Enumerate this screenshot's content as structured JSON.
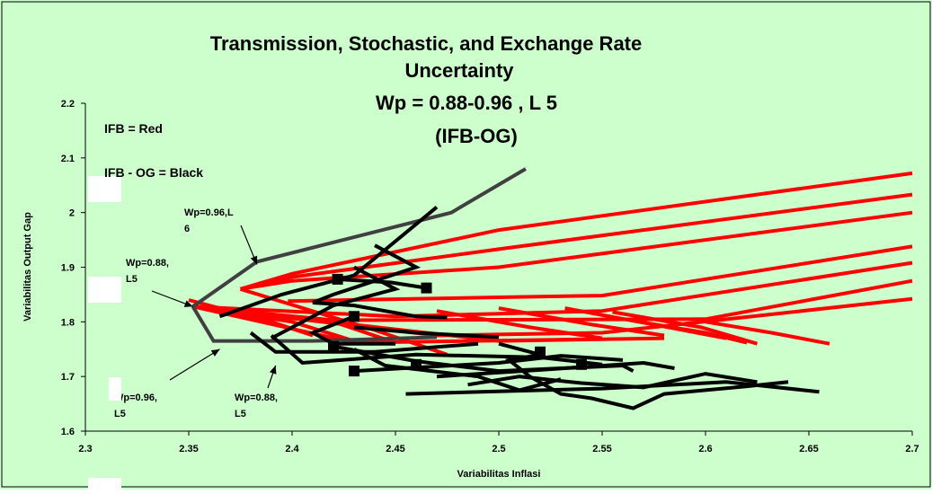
{
  "chart_data": {
    "type": "line",
    "title_lines": [
      "Transmission, Stochastic, and Exchange Rate",
      "Uncertainty",
      "Wp = 0.88-0.96 , L 5",
      "(IFB-OG)"
    ],
    "xlabel": "Variabilitas Inflasi",
    "ylabel": "Variabilitas Output Gap",
    "xlim": [
      2.3,
      2.7
    ],
    "ylim": [
      1.6,
      2.2
    ],
    "x_ticks": [
      "2.3",
      "2.35",
      "2.4",
      "2.45",
      "2.5",
      "2.55",
      "2.6",
      "2.65",
      "2.7"
    ],
    "y_ticks": [
      "1.6",
      "1.7",
      "1.8",
      "1.9",
      "2",
      "2.1",
      "2.2"
    ],
    "grid": false,
    "legend_notes": [
      "IFB = Red",
      "IFB - OG = Black"
    ],
    "annotations": [
      {
        "text": [
          "Wp=0.96,L",
          "6"
        ],
        "arrow_to": [
          2.383,
          1.905
        ]
      },
      {
        "text": [
          "Wp=0.88,",
          "L5"
        ],
        "arrow_to": [
          2.352,
          1.828
        ]
      },
      {
        "text": [
          "Wp=0.96,",
          "L5"
        ],
        "arrow_to": [
          2.365,
          1.75
        ]
      },
      {
        "text": [
          "Wp=0.88,",
          "L5"
        ],
        "arrow_to": [
          2.392,
          1.72
        ]
      }
    ],
    "series": [
      {
        "color": "#ff0000",
        "points": [
          [
            2.375,
            1.86
          ],
          [
            2.4,
            1.888
          ],
          [
            2.5,
            1.968
          ],
          [
            2.7,
            2.072
          ]
        ]
      },
      {
        "color": "#ff0000",
        "points": [
          [
            2.375,
            1.86
          ],
          [
            2.4,
            1.882
          ],
          [
            2.5,
            1.933
          ],
          [
            2.7,
            2.033
          ]
        ]
      },
      {
        "color": "#ff0000",
        "points": [
          [
            2.375,
            1.86
          ],
          [
            2.4,
            1.875
          ],
          [
            2.5,
            1.9
          ],
          [
            2.7,
            2.0
          ]
        ]
      },
      {
        "color": "#ff0000",
        "points": [
          [
            2.398,
            1.838
          ],
          [
            2.5,
            1.845
          ],
          [
            2.55,
            1.848
          ],
          [
            2.7,
            1.938
          ]
        ]
      },
      {
        "color": "#ff0000",
        "points": [
          [
            2.352,
            1.828
          ],
          [
            2.45,
            1.81
          ],
          [
            2.55,
            1.82
          ],
          [
            2.7,
            1.908
          ]
        ]
      },
      {
        "color": "#ff0000",
        "points": [
          [
            2.352,
            1.828
          ],
          [
            2.42,
            1.803
          ],
          [
            2.6,
            1.805
          ],
          [
            2.7,
            1.875
          ]
        ]
      },
      {
        "color": "#ff0000",
        "points": [
          [
            2.352,
            1.828
          ],
          [
            2.47,
            1.775
          ],
          [
            2.55,
            1.78
          ],
          [
            2.7,
            1.842
          ]
        ]
      },
      {
        "color": "#ff0000",
        "points": [
          [
            2.352,
            1.828
          ],
          [
            2.5,
            1.765
          ],
          [
            2.58,
            1.77
          ]
        ]
      },
      {
        "color": "#ff0000",
        "points": [
          [
            2.352,
            1.828
          ],
          [
            2.43,
            1.762
          ],
          [
            2.54,
            1.768
          ]
        ]
      },
      {
        "color": "#ff0000",
        "points": [
          [
            2.375,
            1.86
          ],
          [
            2.44,
            1.785
          ],
          [
            2.475,
            1.74
          ]
        ]
      },
      {
        "color": "#ff0000",
        "points": [
          [
            2.352,
            1.828
          ],
          [
            2.42,
            1.8
          ],
          [
            2.45,
            1.762
          ]
        ]
      },
      {
        "color": "#ff0000",
        "points": [
          [
            2.352,
            1.828
          ],
          [
            2.4,
            1.8
          ],
          [
            2.43,
            1.765
          ]
        ]
      },
      {
        "color": "#ff0000",
        "points": [
          [
            2.35,
            1.84
          ],
          [
            2.39,
            1.8
          ],
          [
            2.41,
            1.775
          ]
        ]
      },
      {
        "color": "#ff0000",
        "points": [
          [
            2.47,
            1.82
          ],
          [
            2.515,
            1.79
          ],
          [
            2.55,
            1.77
          ]
        ]
      },
      {
        "color": "#ff0000",
        "points": [
          [
            2.5,
            1.825
          ],
          [
            2.545,
            1.795
          ],
          [
            2.58,
            1.775
          ]
        ]
      },
      {
        "color": "#ff0000",
        "points": [
          [
            2.532,
            1.825
          ],
          [
            2.575,
            1.795
          ],
          [
            2.61,
            1.77
          ]
        ]
      },
      {
        "color": "#ff0000",
        "points": [
          [
            2.555,
            1.818
          ],
          [
            2.598,
            1.79
          ],
          [
            2.625,
            1.76
          ]
        ]
      },
      {
        "color": "#ff0000",
        "points": [
          [
            2.568,
            1.8
          ],
          [
            2.6,
            1.78
          ],
          [
            2.62,
            1.762
          ]
        ]
      },
      {
        "color": "#ff0000",
        "points": [
          [
            2.6,
            1.8
          ],
          [
            2.632,
            1.78
          ],
          [
            2.66,
            1.76
          ]
        ]
      },
      {
        "color": "#404040",
        "points": [
          [
            2.352,
            1.828
          ],
          [
            2.383,
            1.91
          ],
          [
            2.477,
            2.0
          ],
          [
            2.513,
            2.08
          ]
        ]
      },
      {
        "color": "#404040",
        "points": [
          [
            2.352,
            1.828
          ],
          [
            2.362,
            1.765
          ],
          [
            2.41,
            1.765
          ],
          [
            2.47,
            1.772
          ]
        ]
      },
      {
        "color": "#000000",
        "points": [
          [
            2.365,
            1.81
          ],
          [
            2.395,
            1.85
          ],
          [
            2.43,
            1.885
          ],
          [
            2.47,
            2.01
          ]
        ]
      },
      {
        "color": "#000000",
        "points": [
          [
            2.39,
            1.77
          ],
          [
            2.42,
            1.83
          ],
          [
            2.45,
            1.86
          ],
          [
            2.43,
            1.9
          ]
        ]
      },
      {
        "color": "#000000",
        "points": [
          [
            2.44,
            1.94
          ],
          [
            2.46,
            1.9
          ],
          [
            2.44,
            1.875
          ],
          [
            2.42,
            1.85
          ],
          [
            2.41,
            1.835
          ],
          [
            2.43,
            1.83
          ],
          [
            2.46,
            1.81
          ],
          [
            2.475,
            1.808
          ]
        ]
      },
      {
        "color": "#000000",
        "points": [
          [
            2.422,
            1.878
          ],
          [
            2.448,
            1.872
          ],
          [
            2.465,
            1.862
          ]
        ]
      },
      {
        "color": "#000000",
        "points": [
          [
            2.38,
            1.78
          ],
          [
            2.392,
            1.745
          ],
          [
            2.44,
            1.745
          ],
          [
            2.49,
            1.76
          ]
        ]
      },
      {
        "color": "#000000",
        "points": [
          [
            2.39,
            1.775
          ],
          [
            2.405,
            1.725
          ],
          [
            2.46,
            1.74
          ],
          [
            2.52,
            1.735
          ],
          [
            2.55,
            1.722
          ]
        ]
      },
      {
        "color": "#000000",
        "points": [
          [
            2.43,
            1.81
          ],
          [
            2.41,
            1.78
          ],
          [
            2.42,
            1.76
          ],
          [
            2.45,
            1.76
          ]
        ]
      },
      {
        "color": "#000000",
        "points": [
          [
            2.43,
            1.71
          ],
          [
            2.5,
            1.725
          ],
          [
            2.53,
            1.738
          ],
          [
            2.56,
            1.73
          ]
        ]
      },
      {
        "color": "#000000",
        "points": [
          [
            2.42,
            1.755
          ],
          [
            2.46,
            1.728
          ],
          [
            2.5,
            1.71
          ],
          [
            2.56,
            1.72
          ],
          [
            2.565,
            1.71
          ]
        ]
      },
      {
        "color": "#000000",
        "points": [
          [
            2.43,
            1.75
          ],
          [
            2.445,
            1.72
          ],
          [
            2.49,
            1.7
          ],
          [
            2.51,
            1.675
          ],
          [
            2.53,
            1.695
          ]
        ]
      },
      {
        "color": "#000000",
        "points": [
          [
            2.47,
            1.7
          ],
          [
            2.52,
            1.712
          ],
          [
            2.57,
            1.725
          ],
          [
            2.585,
            1.715
          ]
        ]
      },
      {
        "color": "#000000",
        "points": [
          [
            2.485,
            1.685
          ],
          [
            2.51,
            1.7
          ],
          [
            2.54,
            1.688
          ],
          [
            2.57,
            1.68
          ],
          [
            2.6,
            1.705
          ],
          [
            2.625,
            1.69
          ]
        ]
      },
      {
        "color": "#000000",
        "points": [
          [
            2.455,
            1.668
          ],
          [
            2.55,
            1.678
          ],
          [
            2.61,
            1.69
          ],
          [
            2.655,
            1.672
          ]
        ]
      },
      {
        "color": "#000000",
        "points": [
          [
            2.5,
            1.76
          ],
          [
            2.52,
            1.74
          ],
          [
            2.505,
            1.73
          ],
          [
            2.515,
            1.7
          ],
          [
            2.53,
            1.668
          ],
          [
            2.545,
            1.66
          ],
          [
            2.565,
            1.642
          ],
          [
            2.58,
            1.668
          ],
          [
            2.62,
            1.682
          ],
          [
            2.64,
            1.69
          ]
        ]
      },
      {
        "color": "#000000",
        "points": [
          [
            2.43,
            1.79
          ],
          [
            2.46,
            1.78
          ],
          [
            2.5,
            1.772
          ]
        ]
      }
    ],
    "markers": [
      [
        2.422,
        1.878
      ],
      [
        2.465,
        1.862
      ],
      [
        2.43,
        1.81
      ],
      [
        2.42,
        1.755
      ],
      [
        2.43,
        1.71
      ],
      [
        2.46,
        1.722
      ],
      [
        2.52,
        1.745
      ],
      [
        2.54,
        1.722
      ]
    ],
    "colors": {
      "outer_bg": "#ccffcc",
      "plot_bg": "#ccffcc",
      "ifb": "#ff0000",
      "ifb_og": "#000000"
    }
  }
}
